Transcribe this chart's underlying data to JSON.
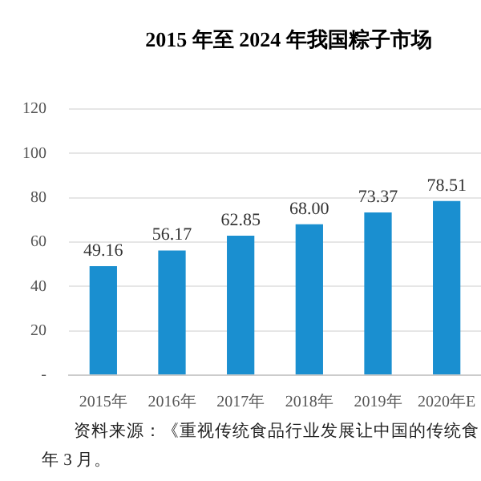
{
  "chart_data": {
    "type": "bar",
    "title": "2015 年至 2024 年我国粽子市场",
    "categories": [
      "2015年",
      "2016年",
      "2017年",
      "2018年",
      "2019年",
      "2020年E"
    ],
    "values": [
      49.16,
      56.17,
      62.85,
      68.0,
      73.37,
      78.51
    ],
    "value_labels": [
      "49.16",
      "56.17",
      "62.85",
      "68.00",
      "73.37",
      "78.51"
    ],
    "color": "#1a8fd0",
    "ylim": [
      0,
      120
    ],
    "yticks": [
      {
        "value": 0,
        "label": "-"
      },
      20,
      40,
      60,
      80,
      100,
      120
    ],
    "grid": "y",
    "annotations": [
      "资料来源：《重视传统食品行业发展让中国的传统食",
      "年 3 月。"
    ]
  }
}
